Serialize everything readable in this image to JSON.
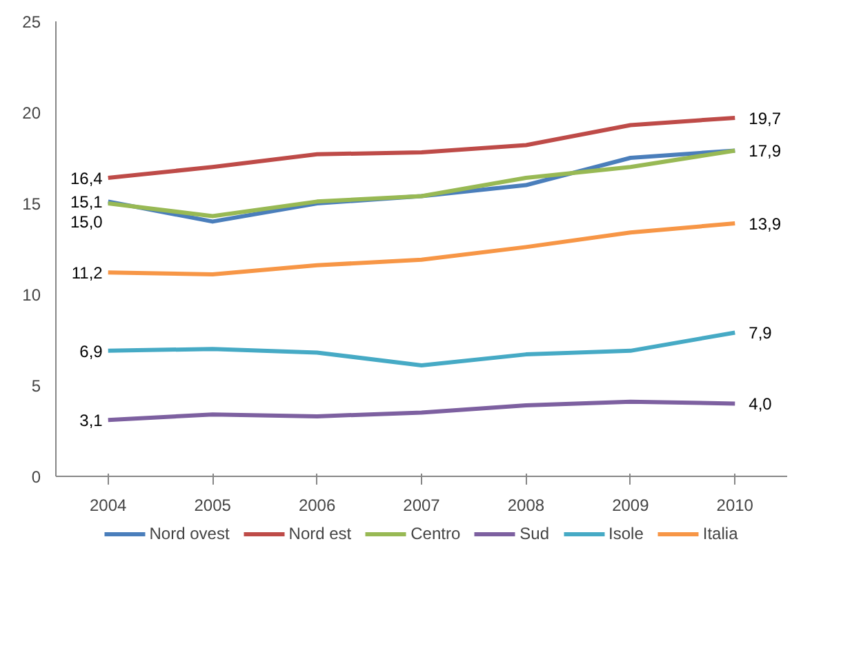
{
  "chart_data": {
    "type": "line",
    "categories": [
      "2004",
      "2005",
      "2006",
      "2007",
      "2008",
      "2009",
      "2010"
    ],
    "ylim": [
      0,
      25
    ],
    "yticks": [
      0,
      5,
      10,
      15,
      20,
      25
    ],
    "grid": false,
    "legend": "bottom",
    "marker": "none",
    "line_style": "solid",
    "series": [
      {
        "name": "Nord ovest",
        "color": "#4a7ebb",
        "values": [
          15.1,
          14.0,
          15.0,
          15.4,
          16.0,
          17.5,
          17.9
        ],
        "value_labels": [
          "15,1",
          null,
          null,
          null,
          null,
          null,
          null
        ]
      },
      {
        "name": "Nord est",
        "color": "#be4b48",
        "values": [
          16.4,
          17.0,
          17.7,
          17.8,
          18.2,
          19.3,
          19.7
        ],
        "value_labels": [
          "16,4",
          null,
          null,
          null,
          null,
          null,
          "19,7"
        ]
      },
      {
        "name": "Centro",
        "color": "#98b954",
        "values": [
          15.0,
          14.3,
          15.1,
          15.4,
          16.4,
          17.0,
          17.9
        ],
        "value_labels": [
          "15,0",
          null,
          null,
          null,
          null,
          null,
          "17,9"
        ]
      },
      {
        "name": "Sud",
        "color": "#7d60a0",
        "values": [
          3.1,
          3.4,
          3.3,
          3.5,
          3.9,
          4.1,
          4.0
        ],
        "value_labels": [
          "3,1",
          null,
          null,
          null,
          null,
          null,
          "4,0"
        ]
      },
      {
        "name": "Isole",
        "color": "#46aac5",
        "values": [
          6.9,
          7.0,
          6.8,
          6.1,
          6.7,
          6.9,
          7.9
        ],
        "value_labels": [
          "6,9",
          null,
          null,
          null,
          null,
          null,
          "7,9"
        ]
      },
      {
        "name": "Italia",
        "color": "#f79646",
        "values": [
          11.2,
          11.1,
          11.6,
          11.9,
          12.6,
          13.4,
          13.9
        ],
        "value_labels": [
          "11,2",
          null,
          null,
          null,
          null,
          null,
          "13,9"
        ]
      }
    ]
  }
}
